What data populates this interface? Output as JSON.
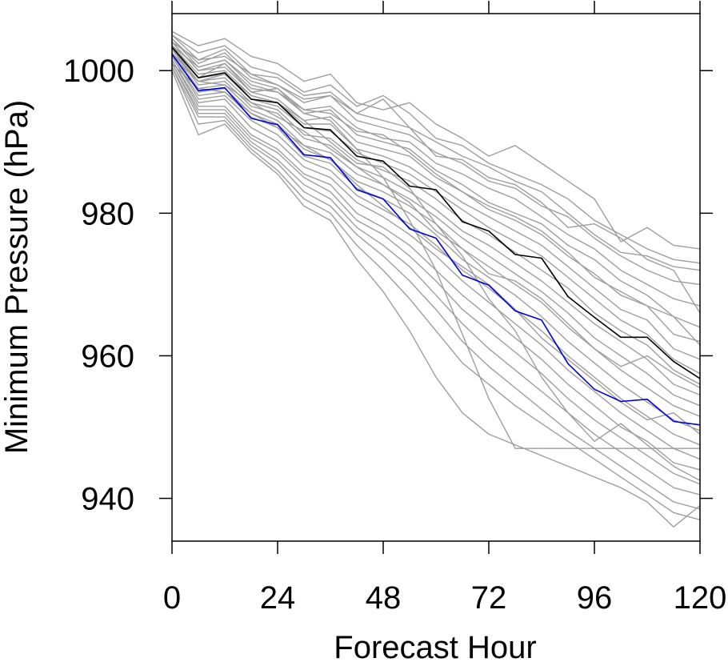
{
  "chart_data": {
    "type": "line",
    "title": "",
    "xlabel": "Forecast Hour",
    "ylabel": "Minimum Pressure (hPa)",
    "xlim": [
      0,
      120
    ],
    "ylim": [
      934,
      1008
    ],
    "xticks": [
      0,
      24,
      48,
      72,
      96,
      120
    ],
    "yticks": [
      940,
      960,
      980,
      1000
    ],
    "grid": false,
    "legend": "none",
    "colors": {
      "ensemble_member": "#9e9e9e",
      "ensemble_mean": "#000000",
      "highlighted_member": "#0000dd",
      "axis": "#000000"
    },
    "x": [
      0,
      6,
      12,
      18,
      24,
      30,
      36,
      42,
      48,
      54,
      60,
      66,
      72,
      78,
      84,
      90,
      96,
      102,
      108,
      114,
      120
    ],
    "series": [
      {
        "role": "member",
        "values": [
          1005.5,
          1003.5,
          1004.5,
          1002.0,
          1001.0,
          998.5,
          999.5,
          995.5,
          994.5,
          995.5,
          992.5,
          990.5,
          988.0,
          989.5,
          987.0,
          984.5,
          982.0,
          976.0,
          978.0,
          975.5,
          975.0
        ]
      },
      {
        "role": "member",
        "values": [
          1005.0,
          1002.5,
          1003.5,
          1000.5,
          999.5,
          997.0,
          998.0,
          995.0,
          996.5,
          994.0,
          990.5,
          989.5,
          987.0,
          985.5,
          984.0,
          982.0,
          979.0,
          977.0,
          975.0,
          973.5,
          973.0
        ]
      },
      {
        "role": "member",
        "values": [
          1005.0,
          1001.5,
          1002.0,
          999.5,
          999.0,
          996.5,
          997.0,
          994.0,
          993.0,
          992.0,
          990.0,
          988.0,
          986.5,
          984.5,
          983.0,
          980.0,
          977.0,
          974.5,
          974.0,
          972.5,
          972.0
        ]
      },
      {
        "role": "member",
        "values": [
          1004.5,
          1001.0,
          1002.5,
          999.0,
          998.0,
          995.5,
          996.5,
          993.0,
          992.0,
          991.0,
          988.5,
          987.0,
          984.5,
          983.5,
          981.0,
          979.5,
          976.5,
          974.0,
          972.0,
          970.5,
          970.0
        ]
      },
      {
        "role": "member",
        "values": [
          1004.5,
          1000.5,
          1001.5,
          998.5,
          997.5,
          994.5,
          995.0,
          992.0,
          990.5,
          990.0,
          987.0,
          985.5,
          983.5,
          982.0,
          979.5,
          977.0,
          975.0,
          972.0,
          970.0,
          968.0,
          967.0
        ]
      },
      {
        "role": "member",
        "values": [
          1004.0,
          1000.0,
          1001.0,
          997.5,
          997.0,
          994.0,
          994.5,
          991.0,
          990.0,
          989.0,
          986.0,
          984.0,
          981.5,
          980.0,
          978.5,
          975.5,
          973.5,
          970.5,
          968.5,
          965.5,
          964.0
        ]
      },
      {
        "role": "member",
        "values": [
          1004.0,
          1000.0,
          1000.5,
          997.0,
          996.0,
          993.0,
          993.5,
          990.0,
          989.0,
          988.0,
          985.0,
          983.0,
          980.5,
          979.0,
          977.0,
          974.0,
          971.5,
          968.5,
          967.0,
          963.0,
          962.0
        ]
      },
      {
        "role": "member",
        "values": [
          1003.5,
          999.5,
          1000.0,
          996.5,
          995.5,
          992.5,
          992.5,
          989.0,
          988.0,
          986.5,
          984.0,
          981.5,
          979.5,
          977.5,
          975.5,
          972.5,
          969.5,
          966.5,
          965.0,
          961.0,
          959.5
        ]
      },
      {
        "role": "member",
        "values": [
          1003.5,
          999.0,
          999.5,
          996.0,
          995.0,
          992.0,
          991.5,
          988.5,
          987.0,
          985.5,
          983.0,
          980.5,
          978.0,
          976.0,
          974.0,
          971.0,
          968.0,
          965.0,
          963.0,
          959.5,
          957.5
        ]
      },
      {
        "role": "member",
        "values": [
          1003.0,
          998.5,
          999.0,
          995.5,
          994.5,
          991.0,
          990.5,
          987.5,
          986.0,
          984.5,
          982.0,
          979.0,
          977.0,
          974.5,
          972.0,
          969.5,
          966.0,
          963.5,
          961.5,
          958.0,
          956.0
        ]
      },
      {
        "role": "member",
        "values": [
          1003.0,
          998.0,
          998.5,
          995.0,
          994.0,
          990.5,
          989.5,
          986.5,
          985.0,
          983.0,
          980.5,
          977.5,
          975.5,
          973.0,
          970.5,
          967.5,
          964.5,
          962.0,
          959.5,
          956.0,
          954.5
        ]
      },
      {
        "role": "member",
        "values": [
          1002.5,
          997.5,
          998.0,
          994.5,
          993.0,
          989.5,
          988.5,
          985.5,
          984.0,
          982.0,
          979.5,
          976.5,
          974.0,
          971.5,
          969.0,
          966.0,
          962.5,
          960.0,
          957.5,
          954.5,
          953.0
        ]
      },
      {
        "role": "member",
        "values": [
          1002.5,
          997.0,
          997.5,
          994.0,
          992.5,
          989.0,
          987.5,
          984.5,
          983.0,
          981.0,
          978.5,
          975.0,
          972.5,
          970.0,
          967.5,
          964.0,
          961.0,
          958.0,
          955.5,
          953.0,
          951.5
        ]
      },
      {
        "role": "member",
        "values": [
          1002.0,
          996.5,
          997.0,
          993.5,
          992.0,
          988.0,
          987.0,
          983.5,
          982.0,
          980.0,
          977.0,
          973.5,
          971.0,
          968.5,
          965.5,
          962.0,
          959.0,
          956.0,
          953.5,
          951.0,
          949.5
        ]
      },
      {
        "role": "member",
        "values": [
          1002.0,
          996.0,
          996.5,
          993.0,
          991.0,
          987.5,
          986.0,
          982.5,
          980.5,
          978.5,
          975.5,
          972.0,
          969.5,
          966.5,
          963.5,
          960.0,
          957.0,
          954.0,
          951.5,
          949.0,
          947.5
        ]
      },
      {
        "role": "member",
        "values": [
          1001.5,
          995.5,
          996.0,
          992.0,
          990.0,
          986.5,
          985.0,
          981.5,
          979.5,
          977.0,
          974.0,
          970.5,
          967.5,
          964.5,
          961.5,
          958.0,
          955.0,
          952.0,
          949.5,
          947.0,
          945.5
        ]
      },
      {
        "role": "member",
        "values": [
          1001.5,
          995.0,
          995.0,
          991.0,
          989.0,
          985.5,
          984.0,
          980.0,
          978.0,
          975.5,
          972.0,
          968.5,
          965.5,
          962.5,
          959.5,
          956.0,
          953.0,
          950.0,
          948.0,
          945.0,
          944.0
        ]
      },
      {
        "role": "member",
        "values": [
          1001.0,
          994.5,
          994.5,
          990.5,
          988.5,
          985.0,
          983.0,
          979.0,
          977.0,
          974.0,
          970.5,
          966.5,
          963.5,
          960.5,
          957.5,
          954.0,
          951.0,
          948.5,
          946.0,
          943.5,
          942.0
        ]
      },
      {
        "role": "member",
        "values": [
          1001.0,
          994.0,
          994.0,
          990.0,
          987.5,
          984.0,
          982.0,
          978.0,
          975.5,
          972.5,
          968.5,
          964.5,
          961.0,
          958.0,
          955.0,
          952.0,
          949.0,
          946.5,
          944.0,
          941.5,
          940.5
        ]
      },
      {
        "role": "member",
        "values": [
          1000.5,
          993.5,
          993.5,
          989.5,
          987.0,
          983.0,
          981.0,
          977.0,
          974.0,
          970.5,
          966.5,
          962.0,
          958.5,
          955.5,
          952.5,
          949.5,
          947.0,
          944.5,
          942.0,
          939.5,
          938.5
        ]
      },
      {
        "role": "member",
        "values": [
          1000.5,
          992.5,
          993.0,
          989.0,
          986.0,
          982.0,
          980.0,
          975.5,
          972.0,
          968.0,
          963.5,
          959.0,
          956.0,
          953.0,
          950.5,
          948.0,
          945.5,
          943.0,
          940.5,
          938.0,
          937.0
        ]
      },
      {
        "role": "member",
        "values": [
          1000.0,
          991.0,
          992.5,
          988.5,
          985.5,
          981.0,
          979.0,
          973.5,
          969.0,
          963.5,
          957.0,
          952.0,
          949.0,
          947.5,
          946.0,
          944.5,
          943.0,
          941.5,
          939.5,
          936.0,
          939.0
        ]
      },
      {
        "role": "member",
        "values": [
          1003.0,
          999.0,
          1001.0,
          997.0,
          997.5,
          994.0,
          993.0,
          989.0,
          985.0,
          979.0,
          972.0,
          963.0,
          954.0,
          947.0,
          947.0,
          947.0,
          947.0,
          947.0,
          947.0,
          947.0,
          947.0
        ]
      },
      {
        "role": "member",
        "values": [
          1002.5,
          998.5,
          999.5,
          996.5,
          995.5,
          993.0,
          990.0,
          987.0,
          986.5,
          983.5,
          978.5,
          974.0,
          968.0,
          963.5,
          957.0,
          952.0,
          948.0,
          950.5,
          947.5,
          944.5,
          942.5
        ]
      },
      {
        "role": "member",
        "values": [
          1004.0,
          1001.5,
          1003.0,
          999.5,
          998.0,
          996.0,
          996.5,
          994.0,
          996.0,
          992.0,
          988.0,
          987.5,
          985.0,
          984.0,
          981.5,
          978.0,
          978.5,
          976.5,
          973.5,
          972.0,
          966.0
        ]
      },
      {
        "role": "member",
        "values": [
          1003.5,
          1000.5,
          1001.5,
          998.0,
          997.0,
          994.5,
          994.0,
          991.5,
          991.0,
          988.5,
          985.5,
          983.0,
          981.0,
          979.5,
          977.5,
          974.5,
          971.0,
          969.0,
          967.0,
          965.5,
          961.5
        ]
      },
      {
        "role": "member",
        "values": [
          1002.0,
          998.5,
          998.0,
          995.5,
          993.5,
          991.5,
          989.0,
          986.5,
          984.0,
          981.5,
          977.5,
          975.0,
          971.5,
          970.5,
          968.0,
          964.5,
          961.0,
          958.5,
          960.0,
          957.5,
          955.5
        ]
      },
      {
        "role": "member",
        "values": [
          1001.0,
          997.5,
          997.0,
          994.0,
          992.0,
          989.5,
          987.5,
          984.0,
          981.0,
          978.0,
          975.0,
          972.5,
          970.0,
          966.5,
          962.5,
          959.5,
          956.5,
          953.5,
          951.0,
          952.0,
          949.0
        ]
      },
      {
        "role": "mean",
        "values": [
          1003.3,
          999.0,
          999.7,
          996.0,
          995.5,
          992.0,
          991.7,
          988.0,
          987.3,
          983.8,
          983.3,
          978.8,
          977.5,
          974.2,
          973.7,
          968.3,
          965.4,
          962.6,
          962.6,
          959.2,
          956.8
        ]
      },
      {
        "role": "highlight",
        "values": [
          1002.3,
          997.2,
          997.6,
          993.3,
          992.4,
          988.2,
          987.8,
          983.3,
          982.0,
          977.8,
          976.5,
          971.3,
          969.9,
          966.3,
          965.0,
          958.9,
          955.3,
          953.6,
          953.9,
          950.8,
          950.3
        ]
      }
    ]
  }
}
